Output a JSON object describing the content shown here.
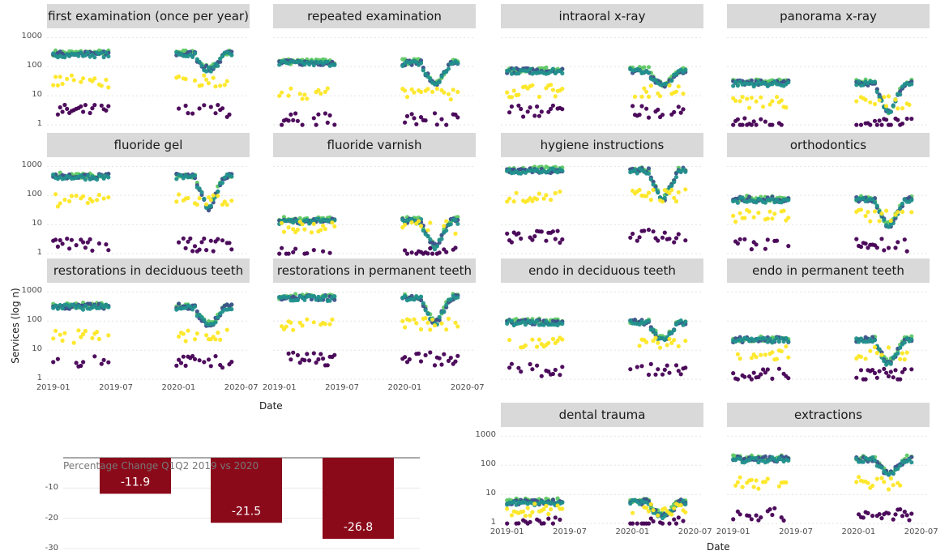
{
  "chart_data": [
    {
      "type": "scatter",
      "ylabel": "Services (log n)",
      "xlabel": "Date",
      "y_scale": "log10",
      "yticks": [
        "1",
        "10",
        "100",
        "1000"
      ],
      "xticks": [
        "2019-01",
        "2019-07",
        "2020-01",
        "2020-07"
      ],
      "ylim": [
        1,
        1000
      ],
      "xlim": [
        "2019-01",
        "2020-07"
      ],
      "grid": true,
      "facet_order": [
        "first examination (once per year)",
        "repeated examination",
        "intraoral x-ray",
        "panorama x-ray",
        "fluoride gel",
        "fluoride varnish",
        "hygiene instructions",
        "orthodontics",
        "restorations in deciduous teeth",
        "restorations in permanent teeth",
        "endo in deciduous teeth",
        "endo in permanent teeth",
        "dental trauma",
        "extractions"
      ],
      "series_colors": [
        "#440154",
        "#3b528b",
        "#21908d",
        "#5dc863",
        "#fde725"
      ],
      "facets": [
        {
          "title": "first examination (once per year)",
          "levels": {
            "top": 300,
            "mid": 30,
            "low": 3
          },
          "covid_dip": 90
        },
        {
          "title": "repeated examination",
          "levels": {
            "top": 150,
            "mid": 12,
            "low": 1.5
          },
          "covid_dip": 30
        },
        {
          "title": "intraoral x-ray",
          "levels": {
            "top": 80,
            "mid": 15,
            "low": 3
          },
          "covid_dip": 25
        },
        {
          "title": "panorama x-ray",
          "levels": {
            "top": 30,
            "mid": 6,
            "low": 1
          },
          "covid_dip": 3
        },
        {
          "title": "fluoride gel",
          "levels": {
            "top": 500,
            "mid": 70,
            "low": 2
          },
          "covid_dip": 40
        },
        {
          "title": "fluoride varnish",
          "levels": {
            "top": 15,
            "mid": 8,
            "low": 1
          },
          "covid_dip": 2
        },
        {
          "title": "hygiene instructions",
          "levels": {
            "top": 800,
            "mid": 100,
            "low": 4
          },
          "covid_dip": 80
        },
        {
          "title": "orthodontics",
          "levels": {
            "top": 80,
            "mid": 20,
            "low": 2
          },
          "covid_dip": 10
        },
        {
          "title": "restorations in deciduous teeth",
          "levels": {
            "top": 350,
            "mid": 30,
            "low": 4
          },
          "covid_dip": 80
        },
        {
          "title": "restorations in permanent teeth",
          "levels": {
            "top": 700,
            "mid": 80,
            "low": 5
          },
          "covid_dip": 100
        },
        {
          "title": "endo in deciduous teeth",
          "levels": {
            "top": 100,
            "mid": 20,
            "low": 2
          },
          "covid_dip": 25
        },
        {
          "title": "endo in permanent teeth",
          "levels": {
            "top": 25,
            "mid": 8,
            "low": 1.5
          },
          "covid_dip": 4
        },
        {
          "title": "dental trauma",
          "levels": {
            "top": 6,
            "mid": 3,
            "low": 1
          },
          "covid_dip": 2
        },
        {
          "title": "extractions",
          "levels": {
            "top": 180,
            "mid": 25,
            "low": 2
          },
          "covid_dip": 60
        }
      ]
    },
    {
      "type": "bar",
      "title": "Percentage Change Q1Q2 2019 vs 2020",
      "categories": [
        "",
        "",
        ""
      ],
      "values": [
        -11.9,
        -21.5,
        -26.8
      ],
      "data_labels": [
        "-11.9",
        "-21.5",
        "-26.8"
      ],
      "yticks": [
        "-10",
        "-20",
        "-30"
      ],
      "ylim": [
        -30,
        0
      ],
      "bar_color": "#8b0a1a",
      "grid": true
    }
  ]
}
